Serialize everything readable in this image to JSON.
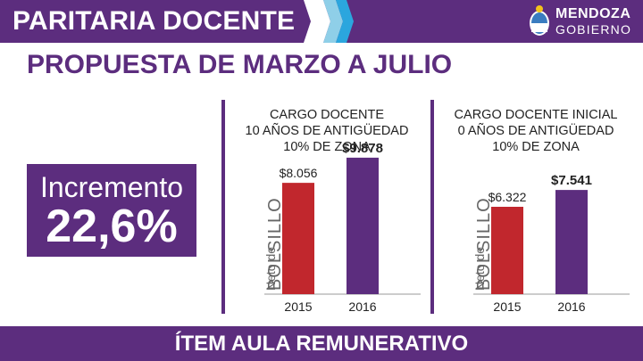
{
  "header": {
    "title": "PARITARIA DOCENTE"
  },
  "logo": {
    "line1": "MENDOZA",
    "line2": "GOBIERNO"
  },
  "subtitle": "PROPUESTA DE MARZO A JULIO",
  "badge": {
    "label": "Incremento",
    "value": "22,6%"
  },
  "footer": {
    "text": "ÍTEM AULA REMUNERATIVO"
  },
  "colors": {
    "purple": "#5c2d7e",
    "red": "#c1272d"
  },
  "chart_data": [
    {
      "type": "bar",
      "title_lines": [
        "CARGO DOCENTE",
        "10 AÑOS DE ANTIGÜEDAD",
        "10% DE ZONA"
      ],
      "ylabel_small": "Neto de",
      "ylabel_big": "BOLSILLO",
      "categories": [
        "2015",
        "2016"
      ],
      "values": [
        8056,
        9878
      ],
      "value_labels": [
        "$8.056",
        "$9.878"
      ],
      "colors": [
        "#c1272d",
        "#5c2d7e"
      ]
    },
    {
      "type": "bar",
      "title_lines": [
        "CARGO DOCENTE INICIAL",
        "0 AÑOS DE ANTIGÜEDAD",
        "10% DE ZONA"
      ],
      "ylabel_small": "Neto de",
      "ylabel_big": "BOLSILLO",
      "categories": [
        "2015",
        "2016"
      ],
      "values": [
        6322,
        7541
      ],
      "value_labels": [
        "$6.322",
        "$7.541"
      ],
      "colors": [
        "#c1272d",
        "#5c2d7e"
      ]
    }
  ]
}
